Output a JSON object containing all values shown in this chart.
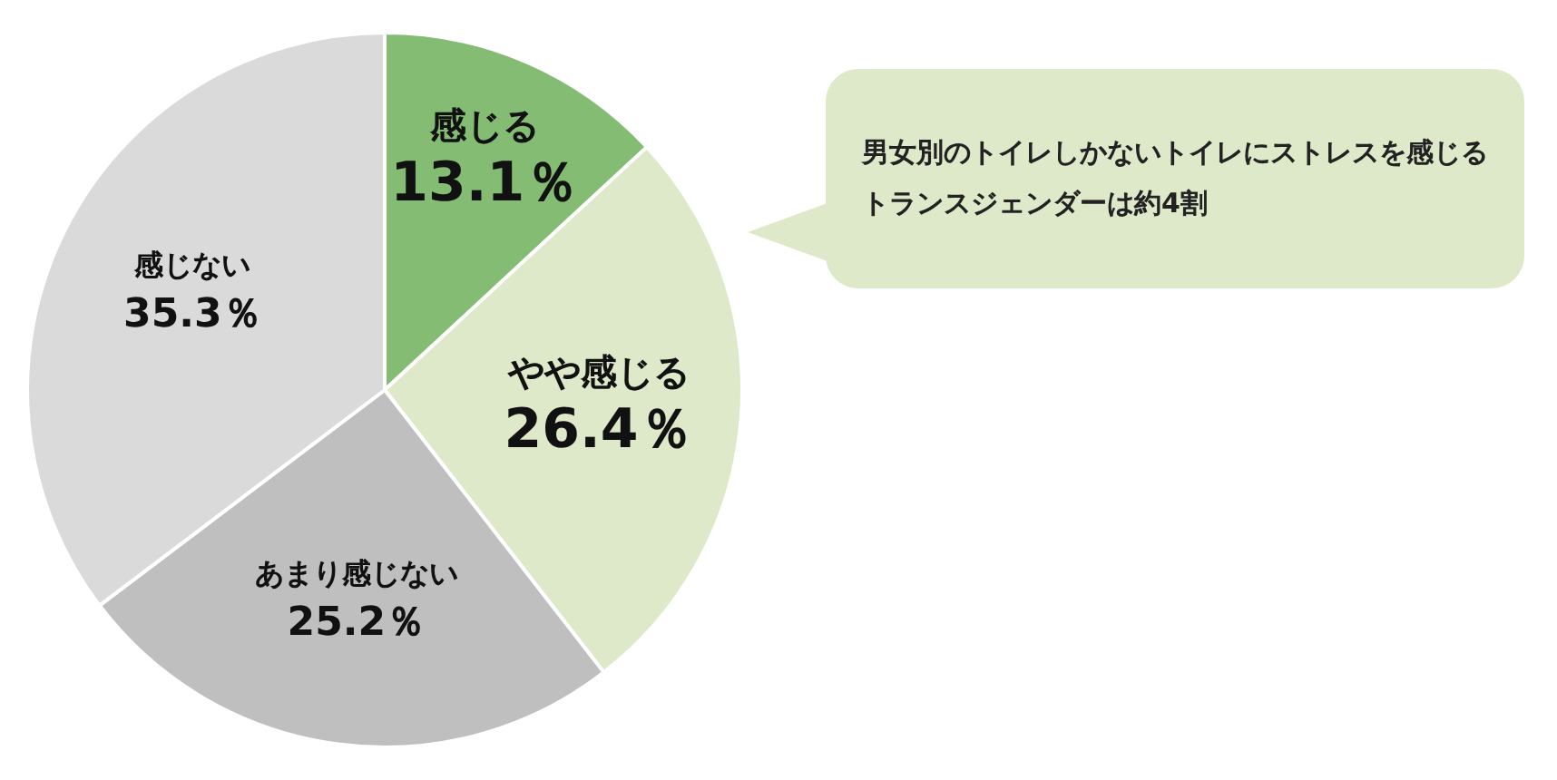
{
  "chart_data": {
    "type": "pie",
    "categories": [
      "感じる",
      "やや感じる",
      "あまり感じない",
      "感じない"
    ],
    "values": [
      13.1,
      26.4,
      25.2,
      35.3
    ],
    "value_labels": [
      "13.1％",
      "26.4％",
      "25.2％",
      "35.3％"
    ],
    "colors": [
      "#84bc74",
      "#dde9c9",
      "#bfbfbf",
      "#dadada"
    ],
    "legend": false,
    "annotations": [
      "男女別のトイレしかないトイレにストレスを感じるトランスジェンダーは約4割"
    ]
  }
}
